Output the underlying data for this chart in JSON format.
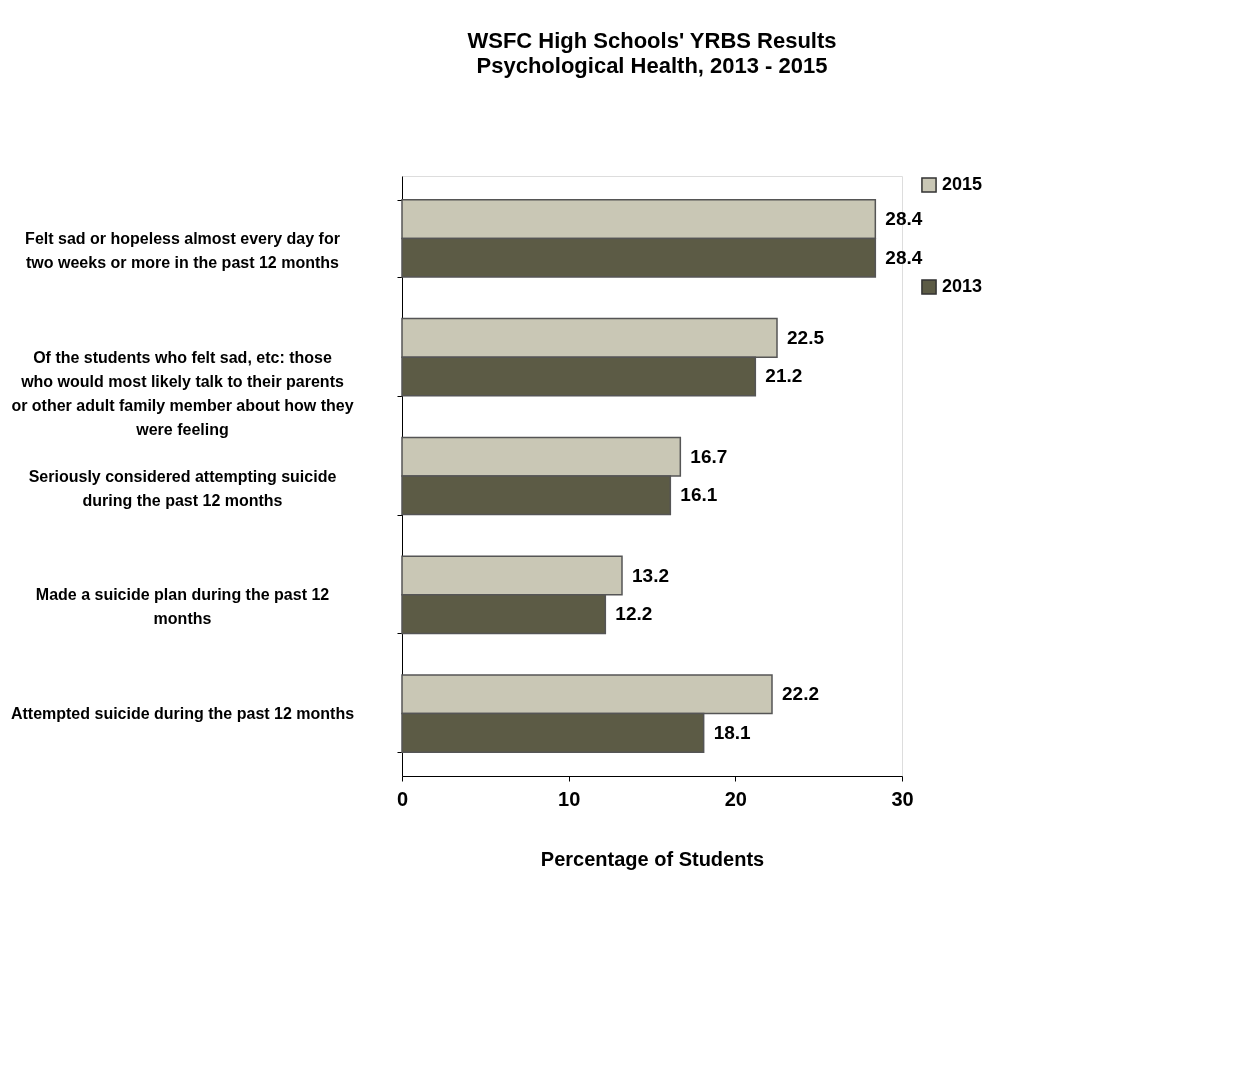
{
  "chart_data": {
    "type": "bar",
    "orientation": "horizontal",
    "title": "WSFC High Schools' YRBS Results",
    "subtitle": "Psychological Health,  2013 - 2015",
    "xlabel": "Percentage of Students",
    "categories": [
      "Felt sad or hopeless almost every day for two weeks or more in the past 12 months",
      "Of the students who felt sad, etc:  those who would most likely talk to their parents or other adult family member about how they were feeling",
      "Seriously considered attempting suicide during the past 12 months",
      "Made a suicide plan during the past 12 months",
      "Attempted suicide during the past 12 months"
    ],
    "series": [
      {
        "name": "2015",
        "color": "#c9c7b5",
        "values": [
          28.4,
          22.5,
          16.7,
          13.2,
          22.2
        ]
      },
      {
        "name": "2013",
        "color": "#5c5b45",
        "values": [
          28.4,
          21.2,
          16.1,
          12.2,
          18.1
        ]
      }
    ],
    "xlim": [
      0,
      30
    ],
    "xticks": [
      0,
      10,
      20,
      30
    ],
    "data_labels": true,
    "grid": false,
    "legend": "right"
  }
}
